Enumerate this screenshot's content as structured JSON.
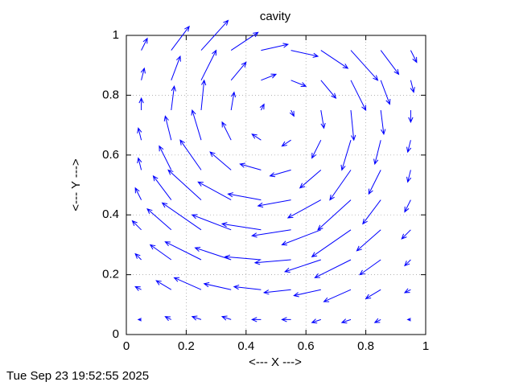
{
  "chart_data": {
    "type": "vector",
    "title": "cavity",
    "xlabel": "<--- X --->",
    "ylabel": "<--- Y --->",
    "timestamp": "Tue Sep 23 19:52:55 2025",
    "color": "#0000ff",
    "grid": true,
    "xlim": [
      0,
      1
    ],
    "ylim": [
      0,
      1
    ],
    "xticks": [
      0,
      0.2,
      0.4,
      0.6,
      0.8,
      1
    ],
    "yticks": [
      0,
      0.2,
      0.4,
      0.6,
      0.8,
      1
    ],
    "x": [
      0.05,
      0.15,
      0.25,
      0.35,
      0.45,
      0.55,
      0.65,
      0.75,
      0.85,
      0.95
    ],
    "y": [
      0.05,
      0.15,
      0.25,
      0.35,
      0.45,
      0.55,
      0.65,
      0.75,
      0.85,
      0.95
    ],
    "u": [
      [
        -0.01,
        -0.02,
        -0.03,
        -0.03,
        -0.03,
        -0.03,
        -0.03,
        -0.03,
        -0.02,
        -0.01
      ],
      [
        -0.02,
        -0.05,
        -0.09,
        -0.09,
        -0.09,
        -0.09,
        -0.09,
        -0.09,
        -0.05,
        -0.02
      ],
      [
        -0.02,
        -0.07,
        -0.12,
        -0.12,
        -0.12,
        -0.12,
        -0.12,
        -0.12,
        -0.07,
        -0.02
      ],
      [
        -0.03,
        -0.08,
        -0.13,
        -0.13,
        -0.13,
        -0.13,
        -0.13,
        -0.13,
        -0.08,
        -0.03
      ],
      [
        -0.02,
        -0.06,
        -0.11,
        -0.11,
        -0.11,
        -0.11,
        -0.11,
        -0.11,
        -0.06,
        -0.02
      ],
      [
        -0.01,
        -0.04,
        -0.07,
        -0.07,
        -0.07,
        -0.07,
        -0.07,
        -0.07,
        -0.04,
        -0.01
      ],
      [
        -0.01,
        -0.02,
        -0.03,
        -0.03,
        -0.03,
        -0.03,
        -0.03,
        -0.03,
        -0.02,
        -0.01
      ],
      [
        0,
        0.01,
        0.01,
        0.01,
        0.01,
        0.01,
        0.01,
        0.01,
        0.01,
        0
      ],
      [
        0.01,
        0.03,
        0.05,
        0.05,
        0.05,
        0.05,
        0.05,
        0.05,
        0.03,
        0.01
      ],
      [
        0.02,
        0.06,
        0.09,
        0.09,
        0.09,
        0.09,
        0.09,
        0.09,
        0.06,
        0.02
      ]
    ],
    "v": [
      [
        0,
        0.01,
        0.01,
        0.01,
        0,
        0,
        -0.01,
        -0.01,
        -0.01,
        0
      ],
      [
        0.01,
        0.03,
        0.04,
        0.02,
        0.01,
        -0.01,
        -0.02,
        -0.04,
        -0.03,
        -0.01
      ],
      [
        0.02,
        0.05,
        0.06,
        0.04,
        0.01,
        -0.01,
        -0.04,
        -0.06,
        -0.05,
        -0.02
      ],
      [
        0.03,
        0.07,
        0.09,
        0.05,
        0.02,
        -0.02,
        -0.05,
        -0.09,
        -0.07,
        -0.03
      ],
      [
        0.04,
        0.08,
        0.1,
        0.06,
        0.02,
        -0.02,
        -0.06,
        -0.1,
        -0.08,
        -0.04
      ],
      [
        0.04,
        0.08,
        0.1,
        0.06,
        0.02,
        -0.02,
        -0.06,
        -0.1,
        -0.08,
        -0.04
      ],
      [
        0.04,
        0.08,
        0.1,
        0.06,
        0.02,
        -0.02,
        -0.06,
        -0.1,
        -0.08,
        -0.04
      ],
      [
        0.04,
        0.08,
        0.1,
        0.06,
        0.02,
        -0.02,
        -0.06,
        -0.1,
        -0.08,
        -0.04
      ],
      [
        0.04,
        0.08,
        0.1,
        0.06,
        0.02,
        -0.02,
        -0.06,
        -0.1,
        -0.08,
        -0.04
      ],
      [
        0.04,
        0.08,
        0.1,
        0.06,
        0.02,
        -0.02,
        -0.06,
        -0.1,
        -0.08,
        -0.04
      ]
    ]
  }
}
